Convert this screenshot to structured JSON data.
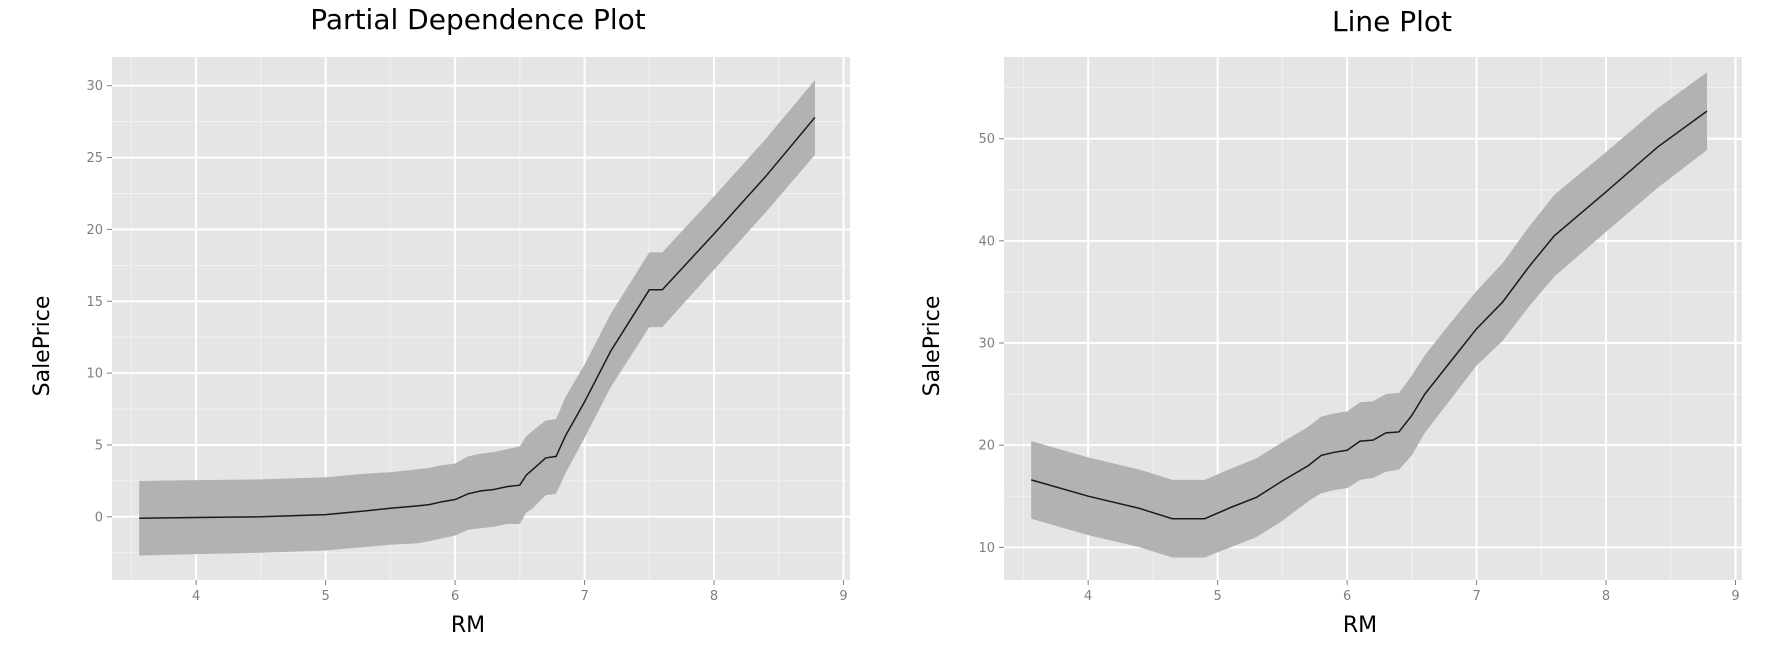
{
  "chart_data": [
    {
      "type": "line",
      "title": "Partial Dependence Plot",
      "xlabel": "RM",
      "ylabel": "SalePrice",
      "xlim": [
        3.35,
        9.05
      ],
      "ylim": [
        -4.4,
        32.0
      ],
      "xticks": [
        4,
        5,
        6,
        7,
        8,
        9
      ],
      "yticks": [
        0,
        5,
        10,
        15,
        20,
        25,
        30
      ],
      "grid": true,
      "band_color": "#b2b2b2",
      "line_color": "#1a1a1a",
      "panel_color": "#e5e5e5",
      "series": [
        {
          "x": [
            3.56,
            4.0,
            4.5,
            5.0,
            5.3,
            5.5,
            5.7,
            5.8,
            5.9,
            6.0,
            6.1,
            6.2,
            6.3,
            6.4,
            6.5,
            6.55,
            6.6,
            6.7,
            6.78,
            6.85,
            7.0,
            7.2,
            7.5,
            7.6,
            8.0,
            8.4,
            8.78
          ],
          "y": [
            -0.1,
            -0.05,
            0.0,
            0.15,
            0.4,
            0.6,
            0.75,
            0.85,
            1.05,
            1.2,
            1.6,
            1.8,
            1.9,
            2.1,
            2.2,
            2.9,
            3.3,
            4.1,
            4.2,
            5.6,
            8.0,
            11.5,
            15.8,
            15.8,
            19.7,
            23.7,
            27.8
          ],
          "lower": [
            -2.7,
            -2.6,
            -2.5,
            -2.35,
            -2.1,
            -1.95,
            -1.85,
            -1.7,
            -1.5,
            -1.3,
            -0.9,
            -0.8,
            -0.7,
            -0.5,
            -0.5,
            0.3,
            0.6,
            1.5,
            1.6,
            3.0,
            5.5,
            9.0,
            13.2,
            13.2,
            17.2,
            21.2,
            25.2
          ],
          "upper": [
            2.5,
            2.55,
            2.6,
            2.75,
            3.0,
            3.1,
            3.3,
            3.4,
            3.6,
            3.7,
            4.2,
            4.4,
            4.5,
            4.7,
            4.9,
            5.6,
            6.0,
            6.7,
            6.8,
            8.3,
            10.6,
            14.1,
            18.4,
            18.4,
            22.3,
            26.3,
            30.4
          ]
        }
      ]
    },
    {
      "type": "line",
      "title": "Line Plot",
      "xlabel": "RM",
      "ylabel": "SalePrice",
      "xlim": [
        3.35,
        9.05
      ],
      "ylim": [
        6.8,
        58.0
      ],
      "xticks": [
        4,
        5,
        6,
        7,
        8,
        9
      ],
      "yticks": [
        10,
        20,
        30,
        40,
        50
      ],
      "grid": true,
      "band_color": "#b2b2b2",
      "line_color": "#1a1a1a",
      "panel_color": "#e5e5e5",
      "series": [
        {
          "x": [
            3.56,
            4.0,
            4.4,
            4.65,
            4.9,
            5.1,
            5.3,
            5.5,
            5.7,
            5.8,
            5.9,
            6.0,
            6.1,
            6.2,
            6.3,
            6.4,
            6.5,
            6.6,
            6.8,
            7.0,
            7.2,
            7.4,
            7.6,
            8.0,
            8.4,
            8.78
          ],
          "y": [
            16.6,
            15.0,
            13.8,
            12.8,
            12.8,
            13.9,
            14.9,
            16.5,
            18.0,
            19.0,
            19.3,
            19.5,
            20.4,
            20.5,
            21.2,
            21.3,
            22.9,
            25.0,
            28.2,
            31.4,
            34.0,
            37.4,
            40.5,
            44.8,
            49.2,
            52.7
          ],
          "lower": [
            12.8,
            11.2,
            10.0,
            9.0,
            9.0,
            10.0,
            11.0,
            12.6,
            14.5,
            15.3,
            15.6,
            15.8,
            16.6,
            16.8,
            17.4,
            17.6,
            19.0,
            21.2,
            24.5,
            27.8,
            30.2,
            33.5,
            36.5,
            40.9,
            45.2,
            48.9
          ],
          "upper": [
            20.4,
            18.8,
            17.6,
            16.6,
            16.6,
            17.7,
            18.7,
            20.3,
            21.8,
            22.8,
            23.1,
            23.3,
            24.2,
            24.3,
            25.0,
            25.1,
            26.8,
            28.8,
            32.0,
            35.1,
            37.8,
            41.3,
            44.5,
            48.7,
            53.0,
            56.5
          ]
        }
      ]
    }
  ]
}
